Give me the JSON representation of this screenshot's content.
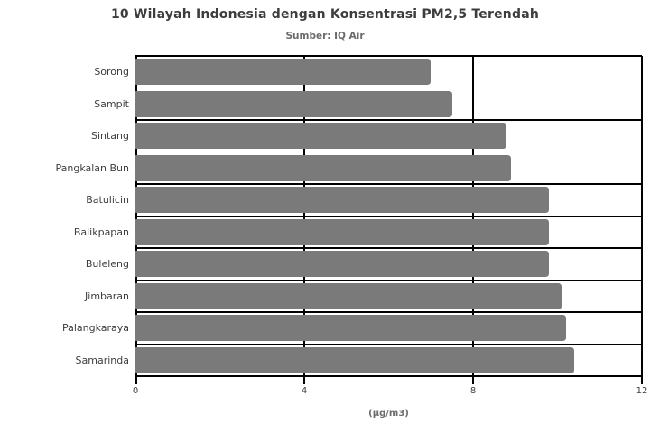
{
  "header": {
    "title": "10 Wilayah Indonesia dengan Konsentrasi PM2,5 Terendah",
    "subtitle": "Sumber: IQ Air"
  },
  "chart_data": {
    "type": "bar",
    "orientation": "horizontal",
    "title": "10 Wilayah Indonesia dengan Konsentrasi PM2,5 Terendah",
    "subtitle": "Sumber: IQ Air",
    "categories": [
      "Sorong",
      "Sampit",
      "Sintang",
      "Pangkalan Bun",
      "Batulicin",
      "Balikpapan",
      "Buleleng",
      "Jimbaran",
      "Palangkaraya",
      "Samarinda"
    ],
    "values": [
      7.0,
      7.5,
      8.8,
      8.9,
      9.8,
      9.8,
      9.8,
      10.1,
      10.2,
      10.4
    ],
    "xlabel": "(µg/m3)",
    "ylabel": "",
    "xlim": [
      0,
      12
    ],
    "xticks": [
      0,
      4,
      8,
      12
    ],
    "grid": true,
    "legend": "none",
    "sort_order": "ascending-top-to-bottom",
    "bar_color": "#7a7a7a",
    "axis_color": "#000000",
    "text_color": "#3d3d3d",
    "background_color": "#ffffff"
  }
}
